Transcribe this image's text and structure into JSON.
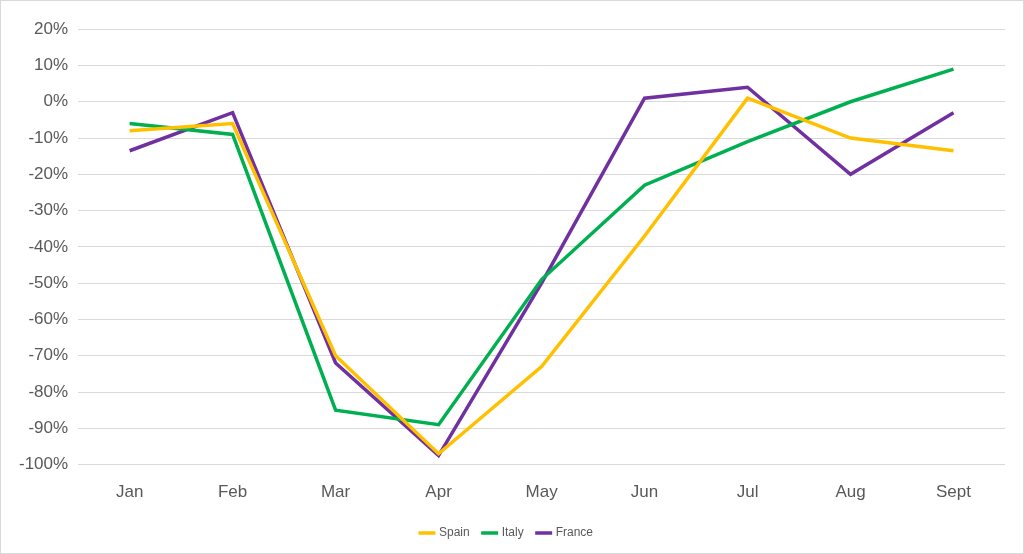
{
  "chart_data": {
    "type": "line",
    "categories": [
      "Jan",
      "Feb",
      "Mar",
      "Apr",
      "May",
      "Jun",
      "Jul",
      "Aug",
      "Sept"
    ],
    "series": [
      {
        "name": "Spain",
        "color": "#FFC000",
        "marker": "none",
        "values": [
          -8,
          -6,
          -70,
          -97,
          -73,
          -37,
          1,
          -10,
          -13.5
        ]
      },
      {
        "name": "Italy",
        "color": "#00B050",
        "marker": "none",
        "values": [
          -6,
          -9,
          -85,
          -89,
          -49,
          -23,
          -11,
          0,
          9
        ]
      },
      {
        "name": "France",
        "color": "#7030A0",
        "marker": "none",
        "values": [
          -13.5,
          -3,
          -72,
          -97.5,
          -50,
          1,
          4,
          -20,
          -3
        ]
      }
    ],
    "ylim": [
      -100,
      20
    ],
    "yticks": [
      {
        "value": -100,
        "label": "-100%"
      },
      {
        "value": -90,
        "label": "-90%"
      },
      {
        "value": -80,
        "label": "-80%"
      },
      {
        "value": -70,
        "label": "-70%"
      },
      {
        "value": -60,
        "label": "-60%"
      },
      {
        "value": -50,
        "label": "-50%"
      },
      {
        "value": -40,
        "label": "-40%"
      },
      {
        "value": -30,
        "label": "-30%"
      },
      {
        "value": -20,
        "label": "-20%"
      },
      {
        "value": -10,
        "label": "-10%"
      },
      {
        "value": 0,
        "label": "0%"
      },
      {
        "value": 10,
        "label": "10%"
      },
      {
        "value": 20,
        "label": "20%"
      }
    ],
    "grid": true,
    "legend": "bottom"
  }
}
